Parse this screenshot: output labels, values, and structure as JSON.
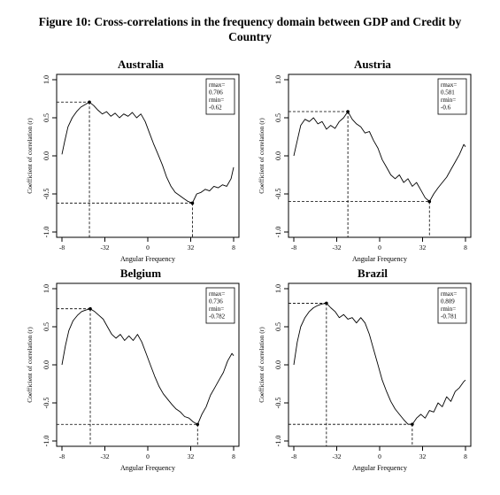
{
  "figure": {
    "title_line1": "Figure 10: Cross-correlations in the frequency domain between GDP and Credit by",
    "title_line2": "Country"
  },
  "chart_data": [
    {
      "type": "line",
      "title": "Australia",
      "xlabel": "Angular Frequency",
      "ylabel": "Coefficient of correlation (r)",
      "xticks": [
        "-8",
        "-32",
        "0",
        "32",
        "8"
      ],
      "ylim": [
        -1.0,
        1.0
      ],
      "yticks": [
        1.0,
        0.5,
        0.0,
        -0.5,
        -1.0
      ],
      "ytick_labels": [
        "1.0",
        "0.5",
        "0.0",
        "-0.5",
        "-1.0"
      ],
      "x": [
        -1.0,
        -0.97,
        -0.93,
        -0.88,
        -0.83,
        -0.78,
        -0.72,
        -0.68,
        -0.63,
        -0.58,
        -0.53,
        -0.48,
        -0.43,
        -0.38,
        -0.33,
        -0.28,
        -0.23,
        -0.18,
        -0.13,
        -0.08,
        -0.03,
        0.02,
        0.07,
        0.12,
        0.17,
        0.22,
        0.27,
        0.32,
        0.37,
        0.42,
        0.47,
        0.52,
        0.57,
        0.62,
        0.67,
        0.72,
        0.77,
        0.82,
        0.87,
        0.92,
        0.97,
        1.0
      ],
      "values": [
        0.02,
        0.18,
        0.38,
        0.5,
        0.58,
        0.64,
        0.68,
        0.706,
        0.66,
        0.6,
        0.55,
        0.58,
        0.52,
        0.56,
        0.5,
        0.55,
        0.52,
        0.57,
        0.5,
        0.55,
        0.45,
        0.3,
        0.15,
        0.02,
        -0.12,
        -0.28,
        -0.4,
        -0.48,
        -0.52,
        -0.56,
        -0.6,
        -0.62,
        -0.5,
        -0.48,
        -0.44,
        -0.46,
        -0.4,
        -0.42,
        -0.38,
        -0.4,
        -0.3,
        -0.15
      ],
      "rmax": {
        "x": -0.68,
        "y": 0.706
      },
      "rmin": {
        "x": 0.52,
        "y": -0.62
      },
      "legend": {
        "line1": "rmax=",
        "line2": "0.706",
        "line3": "rmin=",
        "line4": "-0.62"
      },
      "legend_position": "top-right"
    },
    {
      "type": "line",
      "title": "Austria",
      "xlabel": "Angular Frequency",
      "ylabel": "Coefficient of correlation (r)",
      "xticks": [
        "-8",
        "-32",
        "0",
        "32",
        "8"
      ],
      "ylim": [
        -1.0,
        1.0
      ],
      "yticks": [
        1.0,
        0.5,
        0.0,
        -0.5,
        -1.0
      ],
      "ytick_labels": [
        "1.0",
        "0.5",
        "0.0",
        "-0.5",
        "-1.0"
      ],
      "x": [
        -1.0,
        -0.96,
        -0.92,
        -0.87,
        -0.82,
        -0.77,
        -0.72,
        -0.67,
        -0.62,
        -0.57,
        -0.52,
        -0.47,
        -0.42,
        -0.37,
        -0.32,
        -0.27,
        -0.22,
        -0.17,
        -0.12,
        -0.07,
        -0.02,
        0.03,
        0.08,
        0.13,
        0.18,
        0.23,
        0.28,
        0.33,
        0.38,
        0.43,
        0.48,
        0.53,
        0.58,
        0.63,
        0.68,
        0.73,
        0.78,
        0.83,
        0.88,
        0.93,
        0.98,
        1.0
      ],
      "values": [
        0.0,
        0.2,
        0.4,
        0.48,
        0.45,
        0.5,
        0.42,
        0.45,
        0.35,
        0.4,
        0.36,
        0.45,
        0.5,
        0.581,
        0.48,
        0.42,
        0.38,
        0.3,
        0.32,
        0.2,
        0.1,
        -0.05,
        -0.15,
        -0.25,
        -0.3,
        -0.25,
        -0.35,
        -0.3,
        -0.4,
        -0.35,
        -0.45,
        -0.55,
        -0.6,
        -0.5,
        -0.42,
        -0.35,
        -0.28,
        -0.18,
        -0.08,
        0.02,
        0.15,
        0.12
      ],
      "rmax": {
        "x": -0.37,
        "y": 0.581
      },
      "rmin": {
        "x": 0.58,
        "y": -0.6
      },
      "legend": {
        "line1": "rmax=",
        "line2": "0.581",
        "line3": "rmin=",
        "line4": "-0.6"
      },
      "legend_position": "top-right"
    },
    {
      "type": "line",
      "title": "Belgium",
      "xlabel": "Angular Frequency",
      "ylabel": "Coefficient of correlation (r)",
      "xticks": [
        "-8",
        "-32",
        "0",
        "32",
        "8"
      ],
      "ylim": [
        -1.0,
        1.0
      ],
      "yticks": [
        1.0,
        0.5,
        0.0,
        -0.5,
        -1.0
      ],
      "ytick_labels": [
        "1.0",
        "0.5",
        "0.0",
        "-0.5",
        "-1.0"
      ],
      "x": [
        -1.0,
        -0.96,
        -0.92,
        -0.87,
        -0.82,
        -0.77,
        -0.72,
        -0.67,
        -0.62,
        -0.57,
        -0.52,
        -0.47,
        -0.42,
        -0.37,
        -0.32,
        -0.27,
        -0.22,
        -0.17,
        -0.12,
        -0.07,
        -0.02,
        0.03,
        0.08,
        0.13,
        0.18,
        0.23,
        0.28,
        0.33,
        0.38,
        0.43,
        0.48,
        0.53,
        0.58,
        0.63,
        0.68,
        0.73,
        0.78,
        0.83,
        0.88,
        0.93,
        0.98,
        1.0
      ],
      "values": [
        0.0,
        0.25,
        0.45,
        0.58,
        0.65,
        0.7,
        0.72,
        0.736,
        0.7,
        0.65,
        0.6,
        0.5,
        0.4,
        0.35,
        0.4,
        0.32,
        0.38,
        0.32,
        0.4,
        0.3,
        0.15,
        0.0,
        -0.15,
        -0.28,
        -0.38,
        -0.45,
        -0.52,
        -0.58,
        -0.62,
        -0.68,
        -0.7,
        -0.75,
        -0.782,
        -0.65,
        -0.55,
        -0.4,
        -0.3,
        -0.2,
        -0.1,
        0.05,
        0.15,
        0.12
      ],
      "rmax": {
        "x": -0.67,
        "y": 0.736
      },
      "rmin": {
        "x": 0.58,
        "y": -0.782
      },
      "legend": {
        "line1": "rmax=",
        "line2": "0.736",
        "line3": "rmin=",
        "line4": "-0.782"
      },
      "legend_position": "top-right"
    },
    {
      "type": "line",
      "title": "Brazil",
      "xlabel": "Angular Frequency",
      "ylabel": "Coefficient of correlation (r)",
      "xticks": [
        "-8",
        "-32",
        "0",
        "32",
        "8"
      ],
      "ylim": [
        -1.0,
        1.0
      ],
      "yticks": [
        1.0,
        0.5,
        0.0,
        -0.5,
        -1.0
      ],
      "ytick_labels": [
        "1.0",
        "0.5",
        "0.0",
        "-0.5",
        "-1.0"
      ],
      "x": [
        -1.0,
        -0.96,
        -0.92,
        -0.87,
        -0.82,
        -0.77,
        -0.72,
        -0.67,
        -0.62,
        -0.57,
        -0.52,
        -0.47,
        -0.42,
        -0.37,
        -0.32,
        -0.27,
        -0.22,
        -0.17,
        -0.12,
        -0.07,
        -0.02,
        0.03,
        0.08,
        0.13,
        0.18,
        0.23,
        0.28,
        0.33,
        0.38,
        0.43,
        0.48,
        0.53,
        0.58,
        0.63,
        0.68,
        0.73,
        0.78,
        0.83,
        0.88,
        0.93,
        0.98,
        1.0
      ],
      "values": [
        0.0,
        0.3,
        0.5,
        0.62,
        0.7,
        0.75,
        0.78,
        0.8,
        0.809,
        0.75,
        0.7,
        0.62,
        0.66,
        0.6,
        0.62,
        0.55,
        0.62,
        0.55,
        0.4,
        0.2,
        0.0,
        -0.2,
        -0.35,
        -0.48,
        -0.58,
        -0.65,
        -0.72,
        -0.78,
        -0.781,
        -0.7,
        -0.65,
        -0.7,
        -0.6,
        -0.62,
        -0.5,
        -0.55,
        -0.42,
        -0.48,
        -0.35,
        -0.3,
        -0.22,
        -0.2
      ],
      "rmax": {
        "x": -0.62,
        "y": 0.809
      },
      "rmin": {
        "x": 0.38,
        "y": -0.781
      },
      "legend": {
        "line1": "rmax=",
        "line2": "0.809",
        "line3": "rmin=",
        "line4": "-0.781"
      },
      "legend_position": "top-right"
    }
  ]
}
